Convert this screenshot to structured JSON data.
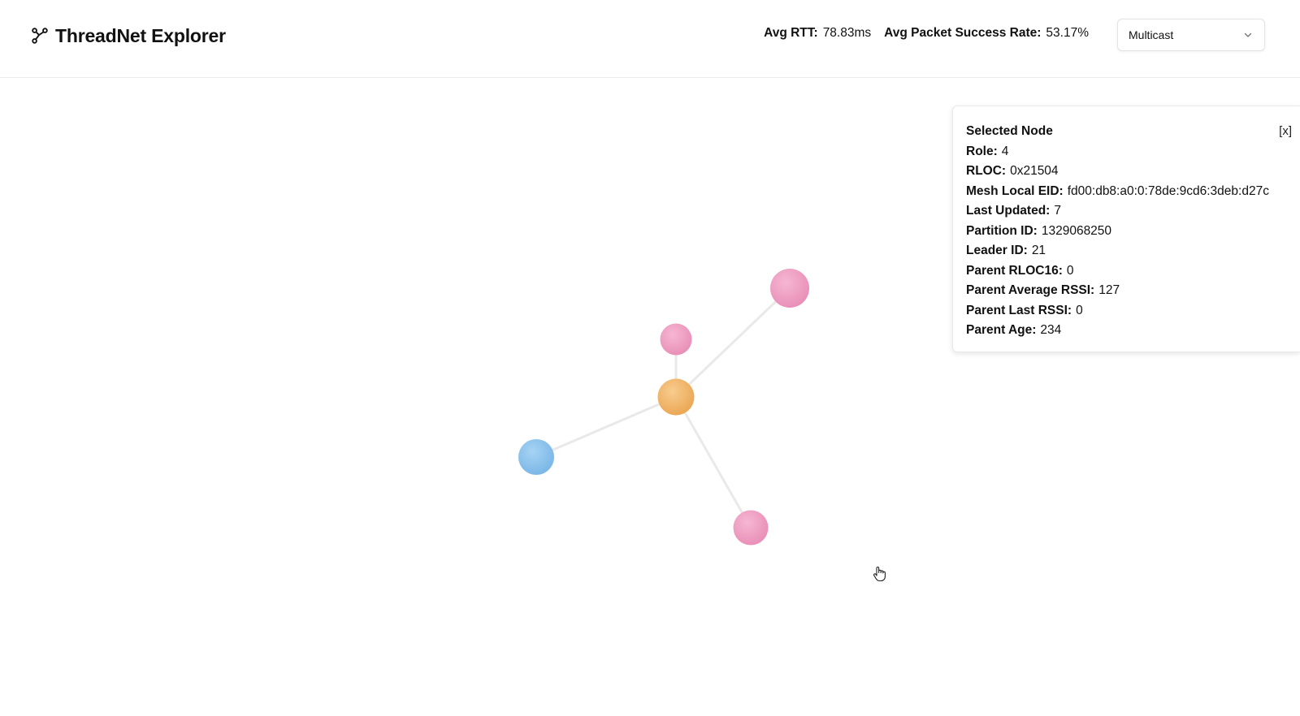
{
  "header": {
    "app_title": "ThreadNet Explorer",
    "logo_icon": "network-branch-icon",
    "stats": [
      {
        "label": "Avg RTT:",
        "value": "78.83ms"
      },
      {
        "label": "Avg Packet Success Rate:",
        "value": "53.17%"
      }
    ],
    "mode_select": {
      "value": "Multicast",
      "icon": "chevron-down-icon"
    }
  },
  "graph": {
    "nodes": [
      {
        "id": "center",
        "color": "#f3b466"
      },
      {
        "id": "top",
        "color": "#f0a0c4"
      },
      {
        "id": "upper-right",
        "color": "#f0a0c4"
      },
      {
        "id": "left",
        "color": "#8cc4ee"
      },
      {
        "id": "bottom-right",
        "color": "#f0a0c4"
      }
    ],
    "edges": [
      [
        "center",
        "top"
      ],
      [
        "center",
        "upper-right"
      ],
      [
        "center",
        "left"
      ],
      [
        "center",
        "bottom-right"
      ]
    ],
    "edge_color": "#e8e8e8"
  },
  "selected_node": {
    "title": "Selected Node",
    "close_label": "[x]",
    "fields": [
      {
        "label": "Role:",
        "value": "4"
      },
      {
        "label": "RLOC:",
        "value": "0x21504"
      },
      {
        "label": "Mesh Local EID:",
        "value": "fd00:db8:a0:0:78de:9cd6:3deb:d27c"
      },
      {
        "label": "Last Updated:",
        "value": "7"
      },
      {
        "label": "Partition ID:",
        "value": "1329068250"
      },
      {
        "label": "Leader ID:",
        "value": "21"
      },
      {
        "label": "Parent RLOC16:",
        "value": "0"
      },
      {
        "label": "Parent Average RSSI:",
        "value": "127"
      },
      {
        "label": "Parent Last RSSI:",
        "value": "0"
      },
      {
        "label": "Parent Age:",
        "value": "234"
      }
    ]
  },
  "cursor": {
    "icon": "hand-pointer-icon"
  }
}
